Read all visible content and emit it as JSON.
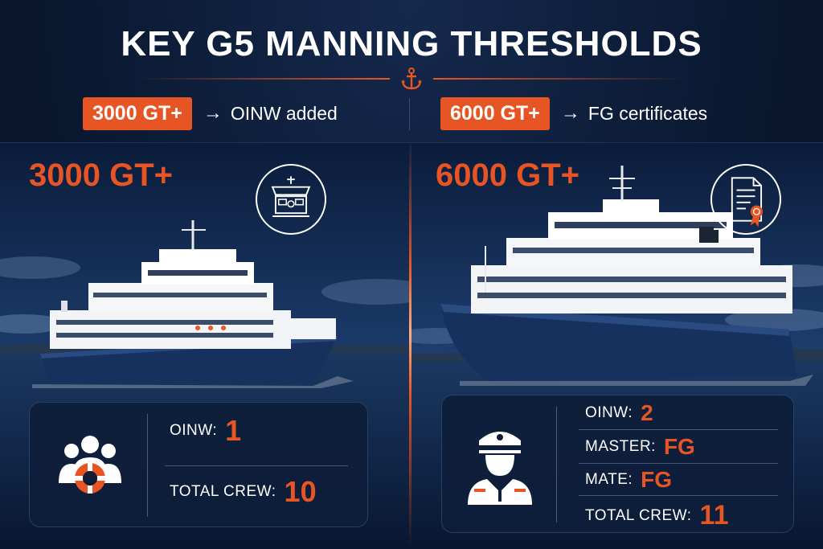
{
  "header": {
    "title": "KEY G5 MANNING THRESHOLDS",
    "left_summary": {
      "badge": "3000 GT+",
      "arrow": "→",
      "text": "OINW added"
    },
    "right_summary": {
      "badge": "6000 GT+",
      "arrow": "→",
      "text": "FG certificates"
    }
  },
  "left_panel": {
    "heading": "3000 GT+",
    "icon": "ship-bridge-icon",
    "card_icon": "crew-lifebuoy-icon",
    "rows": [
      {
        "label": "OINW:",
        "value": "1"
      },
      {
        "label": "TOTAL CREW:",
        "value": "10"
      }
    ]
  },
  "right_panel": {
    "heading": "6000 GT+",
    "icon": "certificate-icon",
    "card_icon": "ship-officer-icon",
    "rows": [
      {
        "label": "OINW:",
        "value": "2"
      },
      {
        "label": "MASTER:",
        "value": "FG"
      },
      {
        "label": "MATE:",
        "value": "FG"
      },
      {
        "label": "TOTAL CREW:",
        "value": "11"
      }
    ]
  },
  "colors": {
    "accent": "#e85524",
    "background": "#0b1a33",
    "hull": "#17315f",
    "text": "#ffffff"
  }
}
